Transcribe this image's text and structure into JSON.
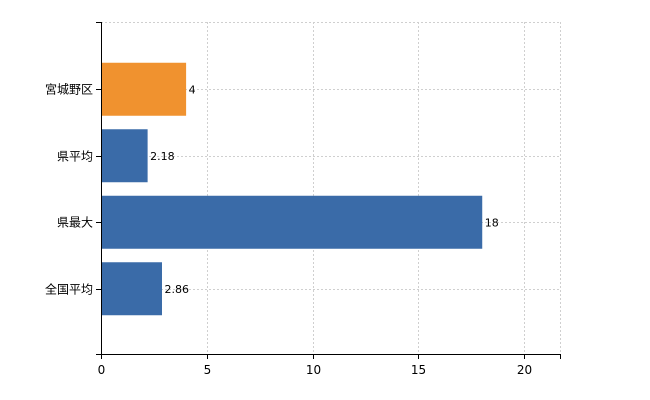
{
  "chart_data": {
    "type": "bar",
    "orientation": "horizontal",
    "title": "",
    "xlabel": "",
    "ylabel": "",
    "categories": [
      "宮城野区",
      "県平均",
      "県最大",
      "全国平均"
    ],
    "values": [
      4,
      2.18,
      18,
      2.86
    ],
    "value_labels": [
      "4",
      "2.18",
      "18",
      "2.86"
    ],
    "bar_colors": [
      "#f0922f",
      "#3a6ba8",
      "#3a6ba8",
      "#3a6ba8"
    ],
    "xlim": [
      0,
      21.7
    ],
    "x_ticks": [
      0,
      5,
      10,
      15,
      20
    ],
    "x_tick_labels": [
      "0",
      "5",
      "10",
      "15",
      "20"
    ],
    "grid": true,
    "legend": "none",
    "colors": {
      "highlight": "#f0922f",
      "default": "#3a6ba8"
    }
  }
}
